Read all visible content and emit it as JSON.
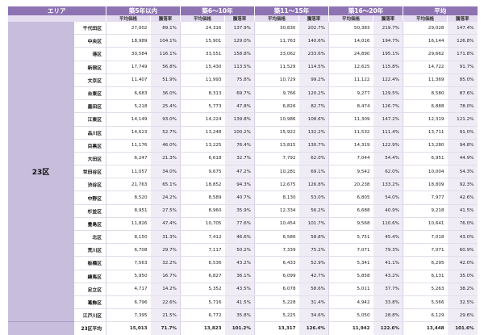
{
  "header": {
    "area_label": "エリア",
    "groups": [
      "築5年以内",
      "築6～10年",
      "築11～15年",
      "築16～20年",
      "平均"
    ],
    "sub_price": "平均価格",
    "sub_rate": "騰落率"
  },
  "area_name": "23区",
  "rows": [
    {
      "ward": "千代田区",
      "v": [
        "27,002",
        "89.1%",
        "24,316",
        "137.9%",
        "30,830",
        "202.7%",
        "50,383",
        "219.7%",
        "29,028",
        "147.4%"
      ]
    },
    {
      "ward": "中央区",
      "v": [
        "18,989",
        "104.1%",
        "15,901",
        "129.0%",
        "11,763",
        "140.6%",
        "14,016",
        "194.7%",
        "16,144",
        "126.8%"
      ]
    },
    {
      "ward": "港区",
      "v": [
        "30,584",
        "116.1%",
        "33,551",
        "158.8%",
        "33,062",
        "233.6%",
        "24,890",
        "195.1%",
        "29,662",
        "171.8%"
      ]
    },
    {
      "ward": "新宿区",
      "v": [
        "17,749",
        "56.8%",
        "15,430",
        "113.5%",
        "11,529",
        "114.5%",
        "12,625",
        "115.8%",
        "14,722",
        "91.7%"
      ]
    },
    {
      "ward": "文京区",
      "v": [
        "11,407",
        "51.9%",
        "11,993",
        "75.8%",
        "10,729",
        "99.2%",
        "11,122",
        "122.4%",
        "11,369",
        "85.0%"
      ]
    },
    {
      "ward": "台東区",
      "v": [
        "6,683",
        "36.0%",
        "8,313",
        "69.7%",
        "9,766",
        "120.2%",
        "9,277",
        "129.5%",
        "8,580",
        "87.6%"
      ]
    },
    {
      "ward": "墨田区",
      "v": [
        "5,218",
        "25.4%",
        "5,773",
        "47.8%",
        "6,826",
        "82.7%",
        "8,474",
        "126.7%",
        "6,888",
        "78.0%"
      ]
    },
    {
      "ward": "江東区",
      "v": [
        "14,149",
        "93.0%",
        "14,224",
        "139.8%",
        "10,986",
        "108.6%",
        "11,309",
        "147.2%",
        "12,319",
        "121.2%"
      ]
    },
    {
      "ward": "品川区",
      "v": [
        "14,623",
        "52.7%",
        "13,248",
        "100.2%",
        "15,922",
        "132.2%",
        "11,532",
        "111.4%",
        "13,711",
        "91.0%"
      ]
    },
    {
      "ward": "目黒区",
      "v": [
        "11,176",
        "46.0%",
        "13,225",
        "76.4%",
        "13,815",
        "130.7%",
        "14,319",
        "122.9%",
        "13,280",
        "94.8%"
      ]
    },
    {
      "ward": "大田区",
      "v": [
        "6,247",
        "21.3%",
        "6,618",
        "32.7%",
        "7,792",
        "62.0%",
        "7,044",
        "54.4%",
        "6,951",
        "44.9%"
      ]
    },
    {
      "ward": "世田谷区",
      "v": [
        "11,057",
        "34.0%",
        "9,675",
        "47.2%",
        "10,281",
        "69.1%",
        "9,542",
        "62.0%",
        "10,004",
        "54.3%"
      ]
    },
    {
      "ward": "渋谷区",
      "v": [
        "21,763",
        "65.1%",
        "18,852",
        "94.3%",
        "12,675",
        "126.8%",
        "20,238",
        "133.2%",
        "18,809",
        "92.3%"
      ]
    },
    {
      "ward": "中野区",
      "v": [
        "8,520",
        "24.2%",
        "8,589",
        "40.7%",
        "8,130",
        "53.0%",
        "6,805",
        "54.0%",
        "7,977",
        "42.6%"
      ]
    },
    {
      "ward": "杉並区",
      "v": [
        "8,951",
        "27.5%",
        "8,960",
        "35.9%",
        "12,334",
        "56.2%",
        "6,688",
        "40.9%",
        "9,218",
        "41.5%"
      ]
    },
    {
      "ward": "豊島区",
      "v": [
        "11,826",
        "47.4%",
        "10,705",
        "77.6%",
        "10,454",
        "101.7%",
        "9,568",
        "110.6%",
        "10,641",
        "76.0%"
      ]
    },
    {
      "ward": "北区",
      "v": [
        "8,150",
        "31.3%",
        "7,412",
        "46.6%",
        "6,586",
        "58.8%",
        "5,751",
        "45.4%",
        "7,018",
        "43.0%"
      ]
    },
    {
      "ward": "荒川区",
      "v": [
        "6,708",
        "29.7%",
        "7,117",
        "50.2%",
        "7,339",
        "75.2%",
        "7,071",
        "79.3%",
        "7,071",
        "60.9%"
      ]
    },
    {
      "ward": "板橋区",
      "v": [
        "7,563",
        "32.2%",
        "6,536",
        "43.2%",
        "6,433",
        "52.9%",
        "5,341",
        "41.1%",
        "6,295",
        "42.0%"
      ]
    },
    {
      "ward": "練馬区",
      "v": [
        "5,950",
        "16.7%",
        "6,827",
        "36.1%",
        "6,099",
        "42.7%",
        "5,858",
        "43.2%",
        "6,131",
        "35.0%"
      ]
    },
    {
      "ward": "足立区",
      "v": [
        "4,717",
        "14.2%",
        "5,352",
        "43.5%",
        "6,078",
        "58.6%",
        "5,011",
        "37.7%",
        "5,263",
        "38.2%"
      ]
    },
    {
      "ward": "葛飾区",
      "v": [
        "6,796",
        "22.6%",
        "5,716",
        "41.5%",
        "5,228",
        "31.4%",
        "4,942",
        "33.8%",
        "5,566",
        "32.5%"
      ]
    },
    {
      "ward": "江戸川区",
      "v": [
        "7,395",
        "21.5%",
        "6,772",
        "35.8%",
        "5,225",
        "34.6%",
        "5,050",
        "28.8%",
        "6,129",
        "29.6%"
      ]
    }
  ],
  "average_row": {
    "ward": "23区平均",
    "v": [
      "15,013",
      "71.7%",
      "13,823",
      "101.2%",
      "13,317",
      "126.4%",
      "11,942",
      "122.6%",
      "13,448",
      "101.6%"
    ]
  }
}
